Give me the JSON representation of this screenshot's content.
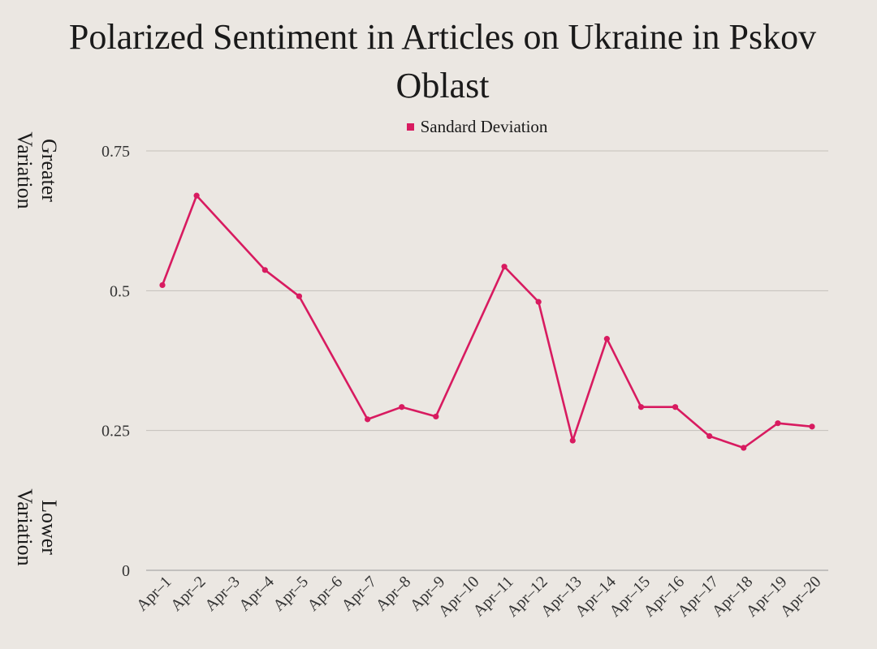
{
  "chart_data": {
    "type": "line",
    "title": "Polarized Sentiment in Articles on Ukraine in Pskov Oblast",
    "legend": {
      "placement": "top-center",
      "entries": [
        "Sandard Deviation"
      ]
    },
    "annotations": {
      "top": [
        "Greater",
        "Variation"
      ],
      "bottom": [
        "Lower",
        "Variation"
      ]
    },
    "xlabel": "",
    "ylabel": "",
    "ylim": [
      0,
      0.75
    ],
    "yticks": [
      {
        "value": 0,
        "label": "0"
      },
      {
        "value": 0.25,
        "label": "0.25"
      },
      {
        "value": 0.5,
        "label": "0.5"
      },
      {
        "value": 0.75,
        "label": "0.75"
      }
    ],
    "grid": true,
    "categories": [
      "Apr–1",
      "Apr–2",
      "Apr–3",
      "Apr–4",
      "Apr–5",
      "Apr–6",
      "Apr–7",
      "Apr–8",
      "Apr–9",
      "Apr–10",
      "Apr–11",
      "Apr–12",
      "Apr–13",
      "Apr–14",
      "Apr–15",
      "Apr–16",
      "Apr–17",
      "Apr–18",
      "Apr–19",
      "Apr–20"
    ],
    "series": [
      {
        "name": "Sandard Deviation",
        "color": "#d81b60",
        "values": [
          0.51,
          0.67,
          null,
          0.537,
          0.49,
          null,
          0.27,
          0.292,
          0.275,
          null,
          0.543,
          0.48,
          0.232,
          0.414,
          0.292,
          0.292,
          0.24,
          0.219,
          0.263,
          0.257
        ]
      }
    ]
  }
}
